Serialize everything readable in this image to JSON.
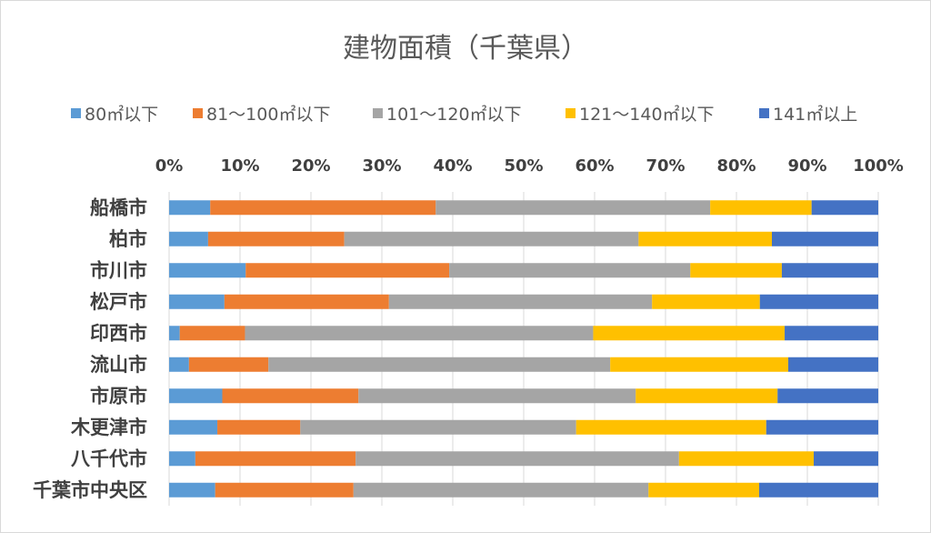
{
  "chart_data": {
    "type": "bar",
    "orientation": "horizontal",
    "stacked": "percent",
    "title": "建物面積（千葉県）",
    "categories": [
      "船橋市",
      "柏市",
      "市川市",
      "松戸市",
      "印西市",
      "流山市",
      "市原市",
      "木更津市",
      "八千代市",
      "千葉市中央区"
    ],
    "series": [
      {
        "name": "80㎡以下",
        "color": "#5B9BD5",
        "values": [
          5.8,
          5.5,
          10.8,
          7.8,
          1.5,
          2.8,
          7.5,
          6.8,
          3.7,
          6.5
        ]
      },
      {
        "name": "81～100㎡以下",
        "color": "#ED7D31",
        "values": [
          31.8,
          19.2,
          28.7,
          23.2,
          9.2,
          11.2,
          19.2,
          11.7,
          22.6,
          19.5
        ]
      },
      {
        "name": "101～120㎡以下",
        "color": "#A5A5A5",
        "values": [
          38.7,
          41.5,
          34.0,
          37.1,
          49.1,
          48.2,
          39.1,
          38.9,
          45.6,
          41.6
        ]
      },
      {
        "name": "121～140㎡以下",
        "color": "#FFC000",
        "values": [
          14.3,
          18.8,
          12.9,
          15.2,
          27.0,
          25.1,
          20.0,
          26.8,
          19.0,
          15.6
        ]
      },
      {
        "name": "141㎡以上",
        "color": "#4472C4",
        "values": [
          9.4,
          15.0,
          13.6,
          16.7,
          13.2,
          12.7,
          14.2,
          15.8,
          9.1,
          16.8
        ]
      }
    ],
    "x_ticks": [
      "0%",
      "10%",
      "20%",
      "30%",
      "40%",
      "50%",
      "60%",
      "70%",
      "80%",
      "90%",
      "100%"
    ],
    "xlim": [
      0,
      100
    ],
    "grid": true,
    "legend_position": "top"
  }
}
